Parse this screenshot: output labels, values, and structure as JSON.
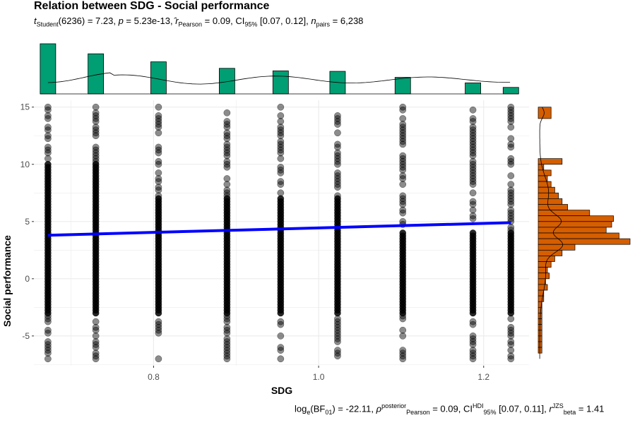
{
  "chart": {
    "title": "Relation between SDG - Social performance",
    "subtitle": {
      "t_symbol": "t",
      "t_sub": "Student",
      "t_text": "(6236) = 7.23, ",
      "p_symbol": "p",
      "p_text": " = 5.23e-13, ",
      "r_symbol": "r",
      "r_sub": "Pearson",
      "r_text": " = 0.09, CI",
      "ci_sub": "95%",
      "ci_text": " [0.07, 0.12], ",
      "n_symbol": "n",
      "n_sub": "pairs",
      "n_text": " = 6,238"
    },
    "caption": {
      "log_text": "log",
      "log_sub": "e",
      "bf_text": "(BF",
      "bf_sub": "01",
      "bf_rest": ") = -22.11, ",
      "rho_symbol": "ρ",
      "rho_sup": "posterior",
      "rho_sub": "Pearson",
      "rho_text": " = 0.09, CI",
      "hdi_sup": "HDI",
      "hdi_sub": "95%",
      "hdi_text": " [0.07, 0.11], ",
      "rb_symbol": "r",
      "rb_sup": "JZS",
      "rb_sub": "beta",
      "rb_text": " = 1.41"
    },
    "xlabel": "SDG",
    "ylabel": "Social performance"
  },
  "colors": {
    "top_hist": "#009E73",
    "right_hist": "#D55E00",
    "points": "#000000",
    "fit_line": "#0000FF",
    "grid": "#EBEBEB"
  },
  "chart_data": {
    "type": "scatter",
    "x_ticks": [
      0.8,
      1.0,
      1.2
    ],
    "y_ticks": [
      -5,
      0,
      5,
      10,
      15
    ],
    "xlim": [
      0.655,
      1.255
    ],
    "ylim": [
      -7.6,
      15.6
    ],
    "x_columns": [
      0.672,
      0.73,
      0.806,
      0.889,
      0.954,
      1.023,
      1.102,
      1.187,
      1.233
    ],
    "point_range_y": [
      -7,
      15
    ],
    "fit_line": {
      "x": [
        0.672,
        1.233
      ],
      "y": [
        3.8,
        4.9
      ]
    },
    "top_histogram": {
      "bins_x": [
        0.672,
        0.73,
        0.806,
        0.889,
        0.954,
        1.023,
        1.102,
        1.187,
        1.233
      ],
      "relative_heights": [
        1.0,
        0.8,
        0.64,
        0.51,
        0.46,
        0.45,
        0.33,
        0.22,
        0.13
      ]
    },
    "right_histogram": {
      "bins_y": [
        14.5,
        10.0,
        9.5,
        9.0,
        8.5,
        8.0,
        7.5,
        7.0,
        6.5,
        6.0,
        5.5,
        5.0,
        4.5,
        4.0,
        3.5,
        3.0,
        2.5,
        2.0,
        1.5,
        1.0,
        0.5,
        0.0,
        -0.5,
        -1.0,
        -1.5,
        -2.0,
        -2.5,
        -3.0,
        -3.5,
        -4.0,
        -4.5,
        -5.0,
        -5.5,
        -6.0,
        -6.5
      ],
      "relative_widths": [
        0.14,
        0.26,
        0.06,
        0.14,
        0.1,
        0.14,
        0.18,
        0.22,
        0.26,
        0.32,
        0.56,
        0.82,
        0.8,
        0.74,
        0.88,
        1.0,
        0.4,
        0.26,
        0.18,
        0.14,
        0.1,
        0.12,
        0.08,
        0.1,
        0.06,
        0.06,
        0.04,
        0.04,
        0.04,
        0.04,
        0.04,
        0.04,
        0.04,
        0.04,
        0.04
      ]
    }
  }
}
